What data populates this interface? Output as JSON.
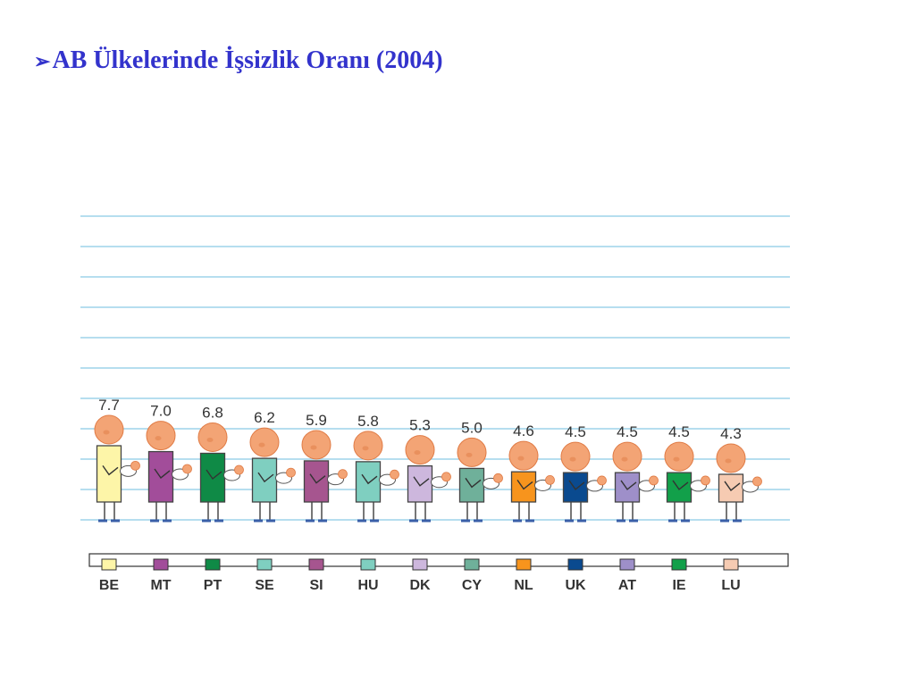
{
  "slide": {
    "bullet": "➢",
    "title": "AB Ülkelerinde İşsizlik Oranı (2004)"
  },
  "colors": {
    "grid": "#9ed3ea",
    "skin": "#f3a475",
    "skin_outline": "#e07b45",
    "leg": "#555555",
    "foot": "#3a5fa8"
  },
  "chart_data": {
    "type": "bar",
    "categories": [
      "BE",
      "MT",
      "PT",
      "SE",
      "SI",
      "HU",
      "DK",
      "CY",
      "NL",
      "UK",
      "AT",
      "IE",
      "LU"
    ],
    "values": [
      7.7,
      7.0,
      6.8,
      6.2,
      5.9,
      5.8,
      5.3,
      5.0,
      4.6,
      4.5,
      4.5,
      4.5,
      4.3
    ],
    "value_labels": [
      "7.7",
      "7.0",
      "6.8",
      "6.2",
      "5.9",
      "5.8",
      "5.3",
      "5.0",
      "4.6",
      "4.5",
      "4.5",
      "4.5",
      "4.3"
    ],
    "colors": [
      "#fdf5a8",
      "#a24d9a",
      "#0f8a46",
      "#7fcfc0",
      "#a6558f",
      "#7fcfc0",
      "#cdb7dd",
      "#6fb09a",
      "#f7941d",
      "#0a4a8f",
      "#9e8fc9",
      "#12a04a",
      "#f6cbb2"
    ],
    "title": "",
    "xlabel": "",
    "ylabel": "",
    "ylim": [
      0,
      10
    ],
    "grid": true,
    "legend": "bottom"
  }
}
